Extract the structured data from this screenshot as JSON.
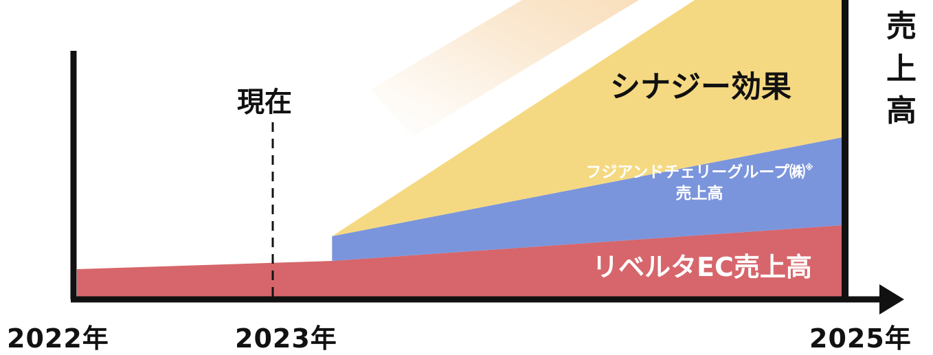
{
  "chart_data": {
    "type": "area",
    "stacked": true,
    "x_axis_ticks": [
      "2022年",
      "2023年",
      "2025年"
    ],
    "y_axis_label_vertical": [
      "売",
      "上",
      "高"
    ],
    "marker": {
      "label": "現在",
      "x": "2023年",
      "style": "dashed"
    },
    "series": [
      {
        "name": "リベルタEC売上高",
        "color": "#d6666b",
        "points": [
          {
            "x": 2022,
            "y": 1.0
          },
          {
            "x": 2023,
            "y": 1.3
          },
          {
            "x": 2025,
            "y": 2.6
          }
        ]
      },
      {
        "name": "フジアンドチェリーグループ㈱",
        "name_line2": "売上高",
        "note": "※",
        "color": "#7b95dc",
        "points": [
          {
            "x": 2023,
            "y": 0.9
          },
          {
            "x": 2025,
            "y": 3.2
          }
        ]
      },
      {
        "name": "シナジー効果",
        "color": "#f5d982",
        "points": [
          {
            "x": 2023,
            "y": 0.0
          },
          {
            "x": 2025,
            "y": 8.5
          }
        ]
      }
    ]
  }
}
